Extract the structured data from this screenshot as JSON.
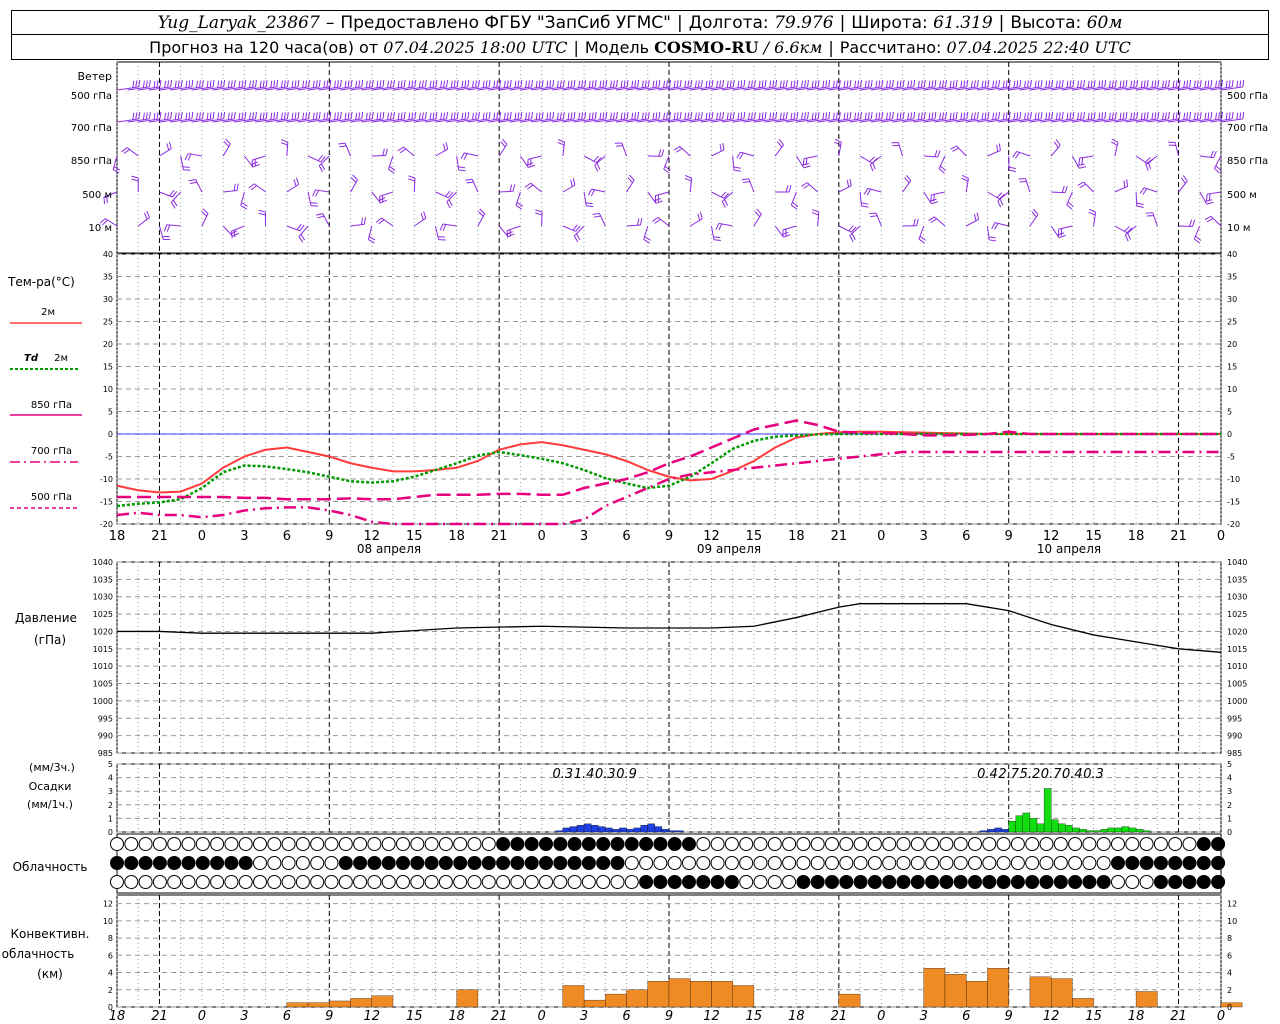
{
  "header": {
    "station": "Yug_Laryak_23867",
    "provider": "Предоставлено ФГБУ \"ЗапСиб УГМС\"",
    "lon_label": "Долгота:",
    "lon": "79.976",
    "lat_label": "Широта:",
    "lat": "61.319",
    "alt_label": "Высота:",
    "alt": "60м",
    "forecast_label": "Прогноз на 120 часа(ов) от",
    "forecast_from": "07.04.2025 18:00 UTC",
    "model_label": "Модель",
    "model": "COSMO-RU",
    "resolution": "/ 6.6км",
    "calc_label": "Рассчитано:",
    "calc_time": "07.04.2025 22:40 UTC"
  },
  "wind": {
    "title": "Ветер",
    "levels": [
      "500 гПа",
      "700 гПа",
      "850 гПа",
      "500 м",
      "10 м"
    ]
  },
  "time_axis": {
    "hours": [
      "18",
      "21",
      "0",
      "3",
      "6",
      "9",
      "12",
      "15",
      "18",
      "21",
      "0",
      "3",
      "6",
      "9",
      "12",
      "15",
      "18",
      "21",
      "0",
      "3",
      "6",
      "9",
      "12",
      "15",
      "18",
      "21",
      "0"
    ],
    "days": [
      "08 апреля",
      "09 апреля",
      "10 апреля"
    ]
  },
  "legend": {
    "title": "Тем-ра(°C)",
    "t2m": "2м",
    "td": "Td",
    "td2m": "2м",
    "t850": "850 гПа",
    "t700": "700 гПа",
    "t500": "500 гПа"
  },
  "pressure": {
    "title": "Давление",
    "unit": "(гПа)"
  },
  "precip": {
    "unit3": "(мм/3ч.)",
    "title": "Осадки",
    "unit1": "(мм/1ч.)"
  },
  "cloud": {
    "title": "Облачность"
  },
  "conv": {
    "title1": "Конвективн.",
    "title2": "облачность",
    "unit": "(км)"
  },
  "colors": {
    "t2m": "#ff3b3b",
    "td": "#009900",
    "t850": "#e6007e",
    "t700": "#e6007e",
    "t500": "#e6007e",
    "wind": "#8a2be2",
    "rain": "#1f3fe0",
    "snow": "#11dd11",
    "conv": "#f08a24",
    "zero_line": "#0000ff"
  },
  "chart_data": [
    {
      "type": "line",
      "title": "Тем-ра(°C)",
      "ylim": [
        -20,
        40
      ],
      "x_hours": [
        0,
        3,
        6,
        9,
        12,
        15,
        18,
        21,
        24,
        27,
        30,
        33,
        36,
        39,
        42,
        45,
        48,
        51,
        54,
        57,
        60,
        63,
        66,
        69,
        72,
        75,
        78,
        81,
        84,
        87,
        90,
        93,
        96,
        99,
        102,
        105,
        108,
        111,
        114,
        117,
        120,
        123,
        126,
        129,
        132,
        135,
        138,
        141,
        144,
        147,
        150,
        153,
        156
      ],
      "series": [
        {
          "name": "2м",
          "values": [
            -11.5,
            -12.5,
            -13,
            -12.8,
            -11,
            -7.5,
            -5,
            -3.5,
            -3,
            -4,
            -5,
            -6.5,
            -7.5,
            -8.3,
            -8.3,
            -8,
            -7.5,
            -6,
            -3.5,
            -2.3,
            -1.8,
            -2.5,
            -3.5,
            -4.5,
            -6,
            -8,
            -9.5,
            -10.3,
            -10,
            -8.2,
            -6,
            -3,
            -0.8,
            0,
            0.4,
            0.5,
            0.5,
            0.4,
            0.3,
            0.2,
            0.1,
            0,
            0,
            0,
            0,
            0,
            0,
            0,
            0,
            0,
            0,
            0,
            0
          ]
        },
        {
          "name": "Td 2м",
          "values": [
            -16,
            -15.5,
            -15.2,
            -14.5,
            -12,
            -8.5,
            -7,
            -7.2,
            -7.8,
            -8.5,
            -9.5,
            -10.5,
            -10.8,
            -10.5,
            -9.5,
            -8,
            -6.5,
            -4.8,
            -4,
            -4.7,
            -5.5,
            -6.5,
            -8,
            -9.8,
            -11,
            -12,
            -11.5,
            -9.5,
            -6.5,
            -3.3,
            -1.5,
            -0.6,
            -0.3,
            -0.1,
            0,
            0,
            0,
            0,
            0,
            0,
            0,
            0,
            0,
            0,
            0,
            0,
            0,
            0,
            0,
            0,
            0,
            0,
            0
          ]
        },
        {
          "name": "850 гПа",
          "values": [
            -14,
            -14,
            -14,
            -14,
            -14,
            -14,
            -14.2,
            -14.2,
            -14.5,
            -14.5,
            -14.5,
            -14.3,
            -14.5,
            -14.5,
            -14,
            -13.5,
            -13.5,
            -13.5,
            -13.3,
            -13.3,
            -13.5,
            -13.5,
            -12,
            -11,
            -10,
            -8.5,
            -6.5,
            -5,
            -3,
            -1,
            1,
            2,
            3,
            2,
            0.5,
            0.3,
            0.2,
            0,
            -0.3,
            -0.3,
            -0.2,
            0,
            0.5,
            0,
            0,
            0,
            0,
            0,
            0,
            0,
            0,
            0,
            0
          ]
        },
        {
          "name": "700 гПа",
          "values": [
            -18,
            -17.5,
            -18,
            -18,
            -18.5,
            -18,
            -17,
            -16.5,
            -16.3,
            -16.3,
            -17,
            -18,
            -19.5,
            -20,
            -20,
            -20,
            -20,
            -20,
            -20,
            -20,
            -20,
            -20,
            -19,
            -16,
            -14,
            -12,
            -10,
            -9,
            -8.5,
            -8,
            -7.5,
            -7,
            -6.5,
            -6,
            -5.5,
            -5,
            -4.5,
            -4,
            -4,
            -4,
            -4,
            -4,
            -4,
            -4,
            -4,
            -4,
            -4,
            -4,
            -4,
            -4,
            -4,
            -4,
            -4
          ]
        },
        {
          "name": "500 гПа",
          "values": []
        }
      ]
    },
    {
      "type": "line",
      "title": "Давление",
      "ylim": [
        985,
        1040
      ],
      "x_hours": [
        0,
        6,
        12,
        24,
        36,
        48,
        60,
        72,
        84,
        90,
        96,
        102,
        105,
        108,
        114,
        120,
        126,
        132,
        138,
        144,
        150,
        156
      ],
      "series": [
        {
          "name": "Давление",
          "values": [
            1020,
            1020,
            1019.5,
            1019.5,
            1019.5,
            1021,
            1021.5,
            1021,
            1021,
            1021.5,
            1024,
            1027,
            1028,
            1028,
            1028,
            1028,
            1026,
            1022,
            1019,
            1017,
            1015,
            1014
          ]
        }
      ]
    },
    {
      "type": "bar",
      "title": "Осадки",
      "ylim": [
        0,
        5
      ],
      "x_hours": [
        62,
        63,
        64,
        65,
        66,
        67,
        68,
        69,
        70,
        71,
        72,
        73,
        74,
        75,
        76,
        77,
        78,
        79,
        80,
        81,
        82,
        83,
        84,
        85,
        86,
        87,
        88
      ],
      "series": [
        {
          "name": "мм/1ч",
          "values": [
            0.1,
            0.3,
            0.4,
            0.5,
            0.6,
            0.5,
            0.4,
            0.3,
            0.2,
            0.3,
            0.2,
            0.3,
            0.5,
            0.6,
            0.4,
            0.2,
            0.1,
            0.1,
            0,
            0,
            0,
            0,
            0,
            0,
            0,
            0,
            0
          ]
        }
      ],
      "labels_3h": [
        {
          "x": 63,
          "text": "0.3"
        },
        {
          "x": 66,
          "text": "1.4"
        },
        {
          "x": 69,
          "text": "0.3"
        },
        {
          "x": 72,
          "text": "0.9"
        }
      ]
    },
    {
      "type": "bar",
      "title": "Осадки",
      "ylim": [
        0,
        5
      ],
      "x_hours": [
        120,
        121,
        122,
        123,
        124,
        125,
        126,
        127,
        128,
        129,
        130,
        131,
        132,
        133,
        134,
        135,
        136,
        137,
        138,
        139,
        140,
        141,
        142,
        143,
        144,
        145,
        146,
        147,
        148,
        149,
        150,
        151,
        152,
        153,
        154,
        155,
        156
      ],
      "series": [
        {
          "name": "дождь",
          "values": [
            0,
            0,
            0.1,
            0.2,
            0.3,
            0.2,
            0.5,
            0.4,
            0.3,
            0.2,
            0.3,
            0.2,
            0.1,
            0.1,
            0,
            0,
            0,
            0,
            0,
            0,
            0,
            0,
            0,
            0,
            0,
            0,
            0,
            0,
            0,
            0,
            0,
            0,
            0,
            0,
            0,
            0,
            0
          ]
        },
        {
          "name": "снег",
          "values": [
            0,
            0,
            0,
            0,
            0,
            0,
            0.8,
            1.2,
            1.4,
            1,
            0.6,
            3.2,
            0.9,
            0.6,
            0.5,
            0.3,
            0.2,
            0.1,
            0.1,
            0.2,
            0.3,
            0.3,
            0.4,
            0.3,
            0.2,
            0.1,
            0,
            0,
            0,
            0,
            0,
            0,
            0,
            0,
            0,
            0,
            0
          ]
        }
      ],
      "labels_3h": [
        {
          "x": 123,
          "text": "0.4"
        },
        {
          "x": 126,
          "text": "2.7"
        },
        {
          "x": 129,
          "text": "5.2"
        },
        {
          "x": 132,
          "text": "0.7"
        },
        {
          "x": 135,
          "text": "0.4"
        },
        {
          "x": 138,
          "text": "0.3"
        }
      ]
    },
    {
      "type": "bar",
      "title": "Конвективн. облачность",
      "ylim": [
        0,
        13
      ],
      "x_hours": [
        24,
        27,
        30,
        33,
        36,
        39,
        42,
        45,
        48,
        51,
        54,
        57,
        60,
        63,
        66,
        69,
        72,
        75,
        78,
        81,
        84,
        87,
        90,
        93,
        96,
        99,
        102,
        105,
        108,
        111,
        114,
        117,
        120,
        123,
        126,
        129,
        132,
        135,
        138,
        141,
        144,
        147,
        150,
        153,
        156
      ],
      "series": [
        {
          "name": "км",
          "values": [
            0.5,
            0.5,
            0.7,
            1,
            1.3,
            0,
            0,
            0,
            2,
            0,
            0,
            0,
            0,
            2.5,
            0.8,
            1.5,
            2,
            3,
            3.3,
            3,
            3,
            2.5,
            0,
            0,
            0,
            0,
            1.5,
            0,
            0,
            0,
            4.5,
            3.8,
            3,
            4.5,
            0,
            3.5,
            3.3,
            1,
            0,
            0,
            1.8,
            0,
            0,
            0,
            0.5
          ]
        }
      ]
    }
  ]
}
